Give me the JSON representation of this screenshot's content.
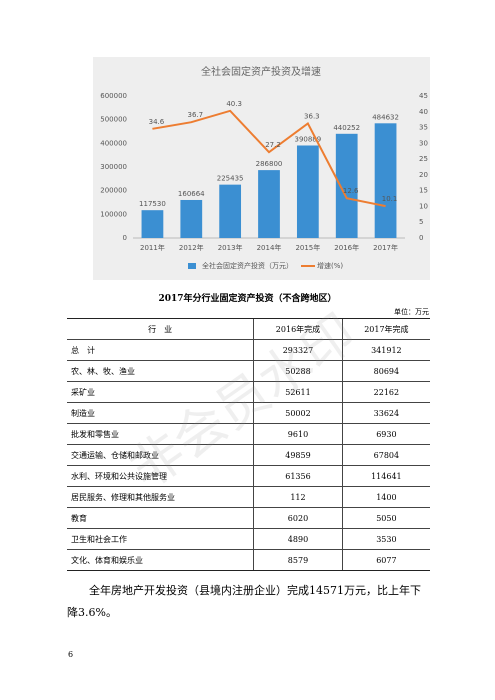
{
  "chart_data": {
    "type": "bar",
    "title": "全社会固定资产投资及增速",
    "categories": [
      "2011年",
      "2012年",
      "2013年",
      "2014年",
      "2015年",
      "2016年",
      "2017年"
    ],
    "series": [
      {
        "name": "全社会固定资产投资（万元）",
        "type": "bar",
        "color": "#3b8fd2",
        "values": [
          117530,
          160664,
          225435,
          286800,
          390889,
          440252,
          484632
        ]
      },
      {
        "name": "增速(%)",
        "type": "line",
        "axis": "y2",
        "color": "#ed7d31",
        "values": [
          34.6,
          36.7,
          40.3,
          27.2,
          36.3,
          12.6,
          10.1
        ]
      }
    ],
    "ylim": [
      0,
      600000
    ],
    "yticks": [
      0,
      100000,
      200000,
      300000,
      400000,
      500000,
      600000
    ],
    "y2lim": [
      0,
      45
    ],
    "y2ticks": [
      0,
      5,
      10,
      15,
      20,
      25,
      30,
      35,
      40,
      45
    ],
    "grid": false,
    "legend": "bottom"
  },
  "table": {
    "title": "2017年分行业固定资产投资（不含跨地区）",
    "unit": "单位：万元",
    "header": [
      "行　业",
      "2016年完成",
      "2017年完成"
    ],
    "rows": [
      [
        "总　计",
        293327,
        341912
      ],
      [
        "农、林、牧、渔业",
        50288,
        80694
      ],
      [
        "采矿业",
        52611,
        22162
      ],
      [
        "制造业",
        50002,
        33624
      ],
      [
        "批发和零售业",
        9610,
        6930
      ],
      [
        "交通运输、仓储和邮政业",
        49859,
        67804
      ],
      [
        "水利、环境和公共设施管理",
        61356,
        114641
      ],
      [
        "居民服务、修理和其他服务业",
        112,
        1400
      ],
      [
        "教育",
        6020,
        5050
      ],
      [
        "卫生和社会工作",
        4890,
        3530
      ],
      [
        "文化、体育和娱乐业",
        8579,
        6077
      ]
    ]
  },
  "paragraph": "全年房地产开发投资（县境内注册企业）完成14571万元，比上年下降3.6%。",
  "watermark": "非会员水印",
  "page_number": "6"
}
